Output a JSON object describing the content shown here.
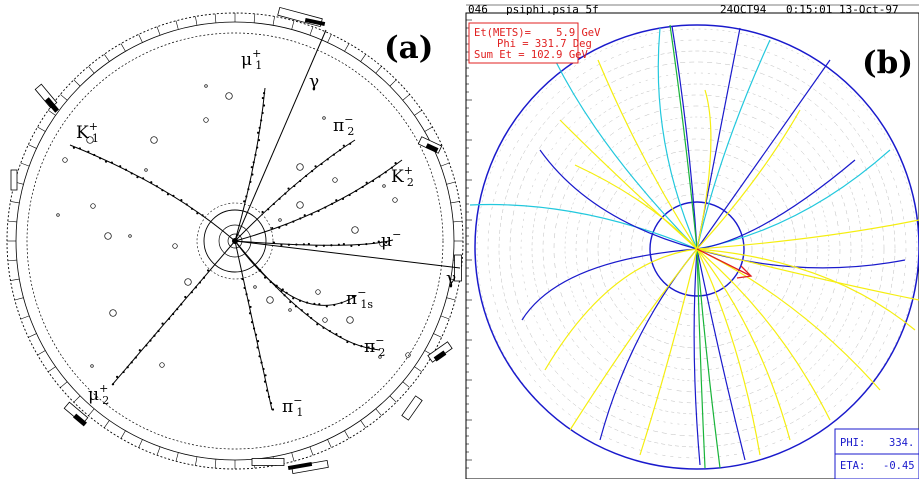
{
  "panel_a": {
    "label": "(a)",
    "particle_labels": [
      {
        "base": "μ",
        "sup": "+",
        "sub": "1"
      },
      {
        "base": "γ",
        "sup": "",
        "sub": ""
      },
      {
        "base": "π",
        "sup": "−",
        "sub": "2"
      },
      {
        "base": "K",
        "sup": "+",
        "sub": "1"
      },
      {
        "base": "K",
        "sup": "+",
        "sub": "2"
      },
      {
        "base": "μ",
        "sup": "−",
        "sub": ""
      },
      {
        "base": "γ",
        "sup": "",
        "sub": ""
      },
      {
        "base": "π",
        "sup": "−",
        "sub": "1s"
      },
      {
        "base": "π",
        "sup": "−",
        "sub": "2"
      },
      {
        "base": "μ",
        "sup": "+",
        "sub": "2"
      },
      {
        "base": "π",
        "sup": "−",
        "sub": "1"
      }
    ]
  },
  "panel_b": {
    "label": "(b)",
    "header": {
      "run": "046",
      "file": "psiphi.psia 5f",
      "date_code": "24OCT94",
      "time": "0:15:01 13-Oct-97"
    },
    "mets_box": {
      "line1": "Et(METS)=    5.9 GeV",
      "line2": "Phi = 331.7 Deg",
      "line3": "Sum Et = 102.9 GeV"
    },
    "readout": {
      "phi_label": "PHI:",
      "phi_value": "334.",
      "eta_label": "ETA:",
      "eta_value": "-0.45"
    },
    "colors": {
      "blue": "#1a1acc",
      "cyan": "#22c8dd",
      "yellow": "#f5ee10",
      "green": "#19b43a",
      "red": "#e02020",
      "grey": "#b4b4b4"
    }
  }
}
